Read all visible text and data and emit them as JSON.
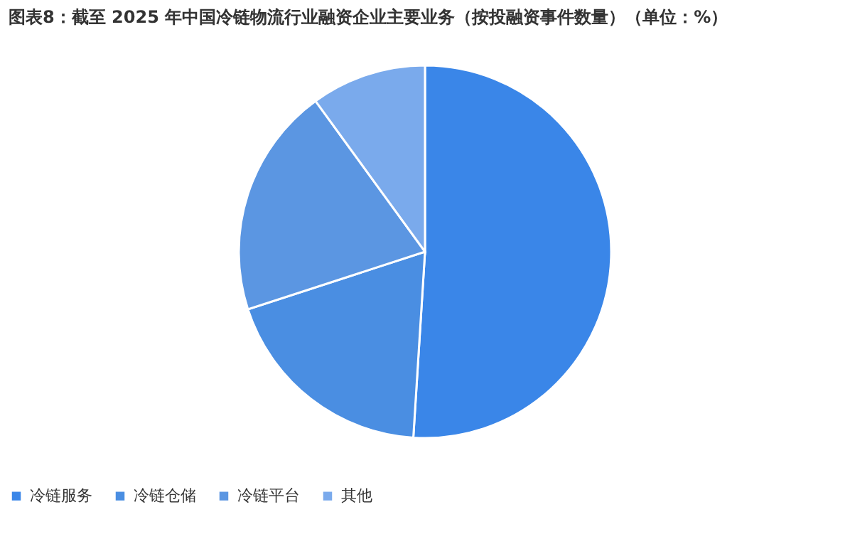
{
  "chart_data": {
    "type": "pie",
    "title": "图表8：截至 2025 年中国冷链物流行业融资企业主要业务（按投融资事件数量）（单位：%）",
    "categories": [
      "冷链服务",
      "冷链仓储",
      "冷链平台",
      "其他"
    ],
    "values": [
      51,
      19,
      20,
      10
    ],
    "colors": [
      "#3a86e8",
      "#4a8ee2",
      "#5b96e2",
      "#7aaaec"
    ],
    "legend": "bottom"
  }
}
